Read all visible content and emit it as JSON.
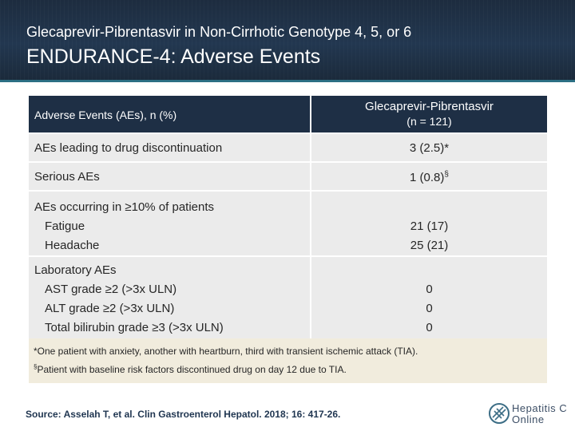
{
  "header": {
    "subtitle": "Glecaprevir-Pibrentasvir in Non-Cirrhotic Genotype 4, 5, or 6",
    "title": "ENDURANCE-4: Adverse Events"
  },
  "table": {
    "col1_header": "Adverse Events (AEs), n (%)",
    "col2_header_line1": "Glecaprevir-Pibrentasvir",
    "col2_header_line2": "(n = 121)",
    "row_discontinuation": {
      "label": "AEs leading to drug discontinuation",
      "value": "3 (2.5)*"
    },
    "row_serious": {
      "label": "Serious AEs",
      "value": "1 (0.8)",
      "value_sup": "§"
    },
    "group_ten_percent": {
      "label": "AEs occurring in ≥10% of patients",
      "items": [
        {
          "label": "Fatigue",
          "value": "21 (17)"
        },
        {
          "label": "Headache",
          "value": "25 (21)"
        }
      ]
    },
    "group_lab": {
      "label": "Laboratory AEs",
      "items": [
        {
          "label": "AST grade ≥2 (>3x ULN)",
          "value": "0"
        },
        {
          "label": "ALT grade ≥2 (>3x ULN)",
          "value": "0"
        },
        {
          "label": "Total bilirubin grade ≥3 (>3x ULN)",
          "value": "0"
        }
      ]
    }
  },
  "footnotes": {
    "note1": "*One patient with anxiety, another with heartburn, third with transient ischemic attack (TIA).",
    "note2_sup": "§",
    "note2": "Patient with baseline risk factors discontinued drug on day 12 due to TIA."
  },
  "source": "Source: Asselah T, et al.  Clin Gastroenterol Hepatol. 2018; 16: 417-26.",
  "logo": {
    "line1": "Hepatitis C",
    "line2": "Online",
    "icon": "dna-helix-icon"
  },
  "colors": {
    "header_bg": "#1f3146",
    "table_header_bg": "#1e2f45",
    "row_band": "#ebebeb",
    "footnote_bg": "#f1ecdd",
    "stripe": "#2c6f84"
  }
}
